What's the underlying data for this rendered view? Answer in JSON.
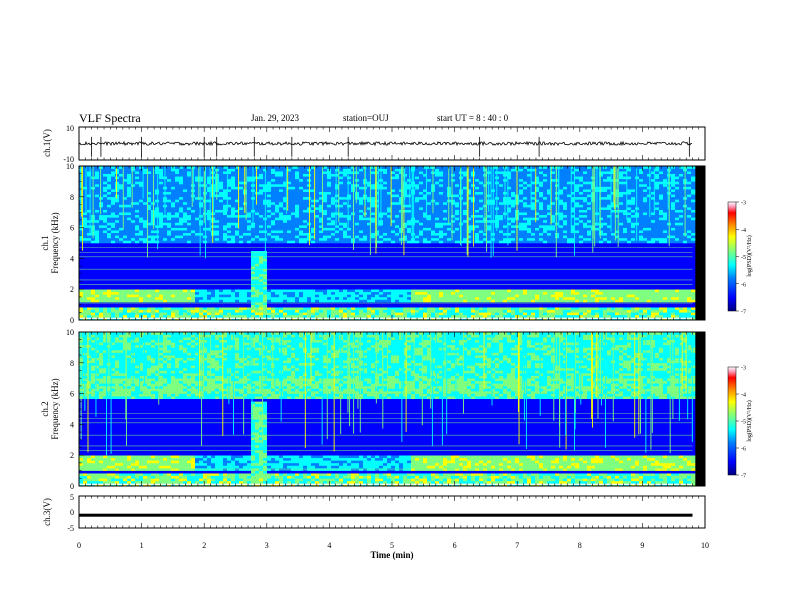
{
  "header": {
    "title": "VLF Spectra",
    "date": "Jan. 29, 2023",
    "station": "station=OUJ",
    "start": "start UT =  8 : 40 : 0"
  },
  "chart_data": [
    {
      "type": "line",
      "panel": "waveform-ch1",
      "ylabel": "ch.1(V)",
      "ylim": [
        -10,
        10
      ],
      "yticks": [
        "10",
        "-10"
      ],
      "xlim": [
        0,
        10
      ],
      "baseline": 0,
      "spikes_x": [
        0.2,
        0.35,
        1.0,
        2.0,
        2.2,
        2.8,
        3.4,
        4.3,
        6.4,
        7.35,
        9.75
      ]
    },
    {
      "type": "heatmap",
      "panel": "spectrogram-ch1",
      "ylabel": "ch.1",
      "ylabel2": "Frequency (kHz)",
      "ylim": [
        0,
        10
      ],
      "yticks": [
        "0",
        "2",
        "4",
        "6",
        "8",
        "10"
      ],
      "xlim": [
        0,
        10
      ],
      "data_end_x": 9.8,
      "colorbar": {
        "label": "log(PSD)(V²/Hz)",
        "range": [
          -7,
          -3
        ],
        "ticks": [
          "-3",
          "-4",
          "-5",
          "-6",
          "-7"
        ]
      }
    },
    {
      "type": "heatmap",
      "panel": "spectrogram-ch2",
      "ylabel": "ch.2",
      "ylabel2": "Frequency (kHz)",
      "ylim": [
        0,
        10
      ],
      "yticks": [
        "0",
        "2",
        "4",
        "6",
        "8",
        "10"
      ],
      "xlim": [
        0,
        10
      ],
      "data_end_x": 9.8,
      "colorbar": {
        "label": "log(PSD)(V²/Hz)",
        "range": [
          -7,
          -3
        ],
        "ticks": [
          "-3",
          "-4",
          "-5",
          "-6",
          "-7"
        ]
      }
    },
    {
      "type": "line",
      "panel": "waveform-ch3",
      "ylabel": "ch.3(V)",
      "ylim": [
        -5,
        5
      ],
      "yticks": [
        "5",
        "0",
        "-5"
      ],
      "xlim": [
        0,
        10
      ],
      "baseline": -1,
      "xlabel": "Time (min)",
      "xticks": [
        "0",
        "1",
        "2",
        "3",
        "4",
        "5",
        "6",
        "7",
        "8",
        "9",
        "10"
      ]
    }
  ],
  "colors": {
    "colormap": [
      "#00007f",
      "#0000ff",
      "#007fff",
      "#00ffff",
      "#7fff7f",
      "#ffff00",
      "#ff7f00",
      "#ff0000",
      "#ff9fbf",
      "#ffffff"
    ]
  }
}
